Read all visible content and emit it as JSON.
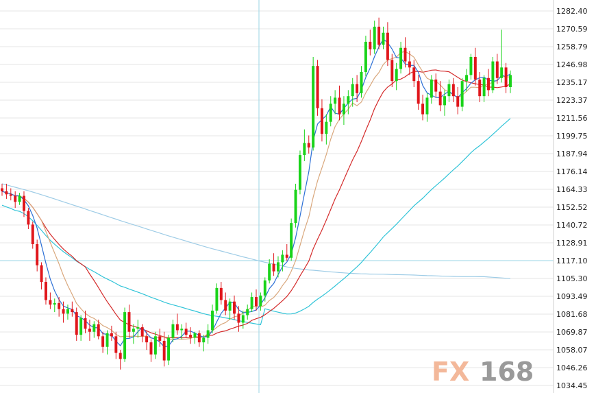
{
  "chart_data": {
    "type": "candlestick",
    "title": "",
    "xlabel": "",
    "ylabel": "",
    "y_ticks": [
      "1282.40",
      "1270.59",
      "1258.79",
      "1246.98",
      "1235.17",
      "1223.37",
      "1211.56",
      "1199.75",
      "1187.94",
      "1176.14",
      "1164.33",
      "1152.52",
      "1140.72",
      "1128.91",
      "1117.10",
      "1105.30",
      "1093.49",
      "1081.68",
      "1069.87",
      "1058.07",
      "1046.26",
      "1034.45"
    ],
    "ylim": [
      1034.45,
      1282.4
    ],
    "current_price": 1117.1,
    "grid": true,
    "colors": {
      "up": "#19d319",
      "down": "#e0161b",
      "ma5": "#2b6fd6",
      "ma10": "#d9a77c",
      "ma20": "#d42b2b",
      "ma60": "#31c4d8",
      "ma200": "#9ecce6",
      "grid": "#e6e6e6",
      "cursor": "#9ad6e6"
    },
    "watermark": {
      "fx": "FX",
      "num": "168",
      "fx_color": "#f3b89a",
      "num_color": "#9a9a9a"
    },
    "candles": [
      [
        1165,
        1168,
        1160,
        1163
      ],
      [
        1163,
        1168,
        1158,
        1161
      ],
      [
        1161,
        1165,
        1157,
        1160
      ],
      [
        1160,
        1163,
        1152,
        1156
      ],
      [
        1156,
        1162,
        1154,
        1160
      ],
      [
        1160,
        1163,
        1146,
        1150
      ],
      [
        1150,
        1152,
        1138,
        1141
      ],
      [
        1141,
        1143,
        1125,
        1128
      ],
      [
        1128,
        1131,
        1110,
        1114
      ],
      [
        1114,
        1116,
        1098,
        1103
      ],
      [
        1103,
        1106,
        1088,
        1091
      ],
      [
        1091,
        1096,
        1085,
        1088
      ],
      [
        1088,
        1092,
        1083,
        1089
      ],
      [
        1089,
        1093,
        1080,
        1085
      ],
      [
        1085,
        1090,
        1076,
        1082
      ],
      [
        1082,
        1088,
        1078,
        1085
      ],
      [
        1085,
        1090,
        1080,
        1083
      ],
      [
        1083,
        1086,
        1064,
        1068
      ],
      [
        1068,
        1081,
        1064,
        1079
      ],
      [
        1079,
        1084,
        1069,
        1072
      ],
      [
        1072,
        1078,
        1064,
        1070
      ],
      [
        1070,
        1077,
        1066,
        1075
      ],
      [
        1075,
        1078,
        1065,
        1067
      ],
      [
        1067,
        1070,
        1056,
        1060
      ],
      [
        1060,
        1071,
        1055,
        1069
      ],
      [
        1069,
        1074,
        1064,
        1067
      ],
      [
        1067,
        1070,
        1052,
        1056
      ],
      [
        1056,
        1058,
        1045,
        1052
      ],
      [
        1052,
        1086,
        1050,
        1083
      ],
      [
        1083,
        1088,
        1066,
        1070
      ],
      [
        1070,
        1075,
        1062,
        1072
      ],
      [
        1072,
        1078,
        1066,
        1073
      ],
      [
        1073,
        1075,
        1063,
        1067
      ],
      [
        1067,
        1071,
        1058,
        1063
      ],
      [
        1063,
        1065,
        1050,
        1055
      ],
      [
        1055,
        1070,
        1052,
        1067
      ],
      [
        1067,
        1072,
        1060,
        1064
      ],
      [
        1064,
        1070,
        1047,
        1051
      ],
      [
        1051,
        1068,
        1048,
        1066
      ],
      [
        1066,
        1078,
        1063,
        1075
      ],
      [
        1075,
        1082,
        1068,
        1071
      ],
      [
        1071,
        1075,
        1065,
        1072
      ],
      [
        1072,
        1076,
        1066,
        1068
      ],
      [
        1068,
        1073,
        1062,
        1066
      ],
      [
        1066,
        1070,
        1062,
        1069
      ],
      [
        1069,
        1071,
        1060,
        1063
      ],
      [
        1063,
        1068,
        1057,
        1066
      ],
      [
        1066,
        1075,
        1062,
        1071
      ],
      [
        1071,
        1088,
        1069,
        1084
      ],
      [
        1084,
        1102,
        1082,
        1099
      ],
      [
        1099,
        1103,
        1088,
        1091
      ],
      [
        1091,
        1096,
        1081,
        1084
      ],
      [
        1084,
        1092,
        1078,
        1090
      ],
      [
        1090,
        1094,
        1078,
        1082
      ],
      [
        1082,
        1087,
        1070,
        1076
      ],
      [
        1076,
        1084,
        1072,
        1081
      ],
      [
        1081,
        1088,
        1078,
        1085
      ],
      [
        1085,
        1096,
        1083,
        1093
      ],
      [
        1093,
        1098,
        1084,
        1087
      ],
      [
        1087,
        1096,
        1084,
        1094
      ],
      [
        1094,
        1106,
        1090,
        1104
      ],
      [
        1104,
        1118,
        1102,
        1115
      ],
      [
        1115,
        1122,
        1107,
        1110
      ],
      [
        1110,
        1120,
        1106,
        1116
      ],
      [
        1116,
        1124,
        1110,
        1121
      ],
      [
        1121,
        1128,
        1117,
        1119
      ],
      [
        1119,
        1145,
        1117,
        1142
      ],
      [
        1142,
        1168,
        1139,
        1164
      ],
      [
        1164,
        1190,
        1161,
        1187
      ],
      [
        1187,
        1204,
        1183,
        1195
      ],
      [
        1195,
        1200,
        1188,
        1192
      ],
      [
        1192,
        1252,
        1190,
        1246
      ],
      [
        1246,
        1250,
        1213,
        1218
      ],
      [
        1218,
        1224,
        1196,
        1201
      ],
      [
        1201,
        1214,
        1194,
        1209
      ],
      [
        1209,
        1226,
        1206,
        1221
      ],
      [
        1221,
        1230,
        1214,
        1225
      ],
      [
        1225,
        1233,
        1210,
        1214
      ],
      [
        1214,
        1226,
        1207,
        1221
      ],
      [
        1221,
        1230,
        1214,
        1226
      ],
      [
        1226,
        1238,
        1219,
        1234
      ],
      [
        1234,
        1240,
        1222,
        1228
      ],
      [
        1228,
        1246,
        1225,
        1242
      ],
      [
        1242,
        1266,
        1239,
        1262
      ],
      [
        1262,
        1270,
        1253,
        1257
      ],
      [
        1257,
        1276,
        1254,
        1272
      ],
      [
        1272,
        1278,
        1257,
        1260
      ],
      [
        1260,
        1272,
        1257,
        1268
      ],
      [
        1268,
        1275,
        1246,
        1250
      ],
      [
        1250,
        1254,
        1232,
        1236
      ],
      [
        1236,
        1248,
        1230,
        1244
      ],
      [
        1244,
        1262,
        1241,
        1258
      ],
      [
        1258,
        1265,
        1245,
        1249
      ],
      [
        1249,
        1256,
        1240,
        1245
      ],
      [
        1245,
        1250,
        1232,
        1236
      ],
      [
        1236,
        1240,
        1217,
        1221
      ],
      [
        1221,
        1227,
        1210,
        1214
      ],
      [
        1214,
        1228,
        1209,
        1225
      ],
      [
        1225,
        1240,
        1221,
        1237
      ],
      [
        1237,
        1241,
        1225,
        1229
      ],
      [
        1229,
        1236,
        1216,
        1220
      ],
      [
        1220,
        1230,
        1213,
        1226
      ],
      [
        1226,
        1237,
        1222,
        1234
      ],
      [
        1234,
        1238,
        1222,
        1226
      ],
      [
        1226,
        1232,
        1214,
        1219
      ],
      [
        1219,
        1238,
        1216,
        1236
      ],
      [
        1236,
        1244,
        1229,
        1240
      ],
      [
        1240,
        1254,
        1237,
        1252
      ],
      [
        1252,
        1258,
        1233,
        1237
      ],
      [
        1237,
        1242,
        1222,
        1226
      ],
      [
        1226,
        1240,
        1222,
        1238
      ],
      [
        1238,
        1244,
        1226,
        1230
      ],
      [
        1230,
        1252,
        1228,
        1249
      ],
      [
        1249,
        1254,
        1234,
        1238
      ],
      [
        1238,
        1270,
        1235,
        1245
      ],
      [
        1245,
        1248,
        1228,
        1232
      ],
      [
        1232,
        1243,
        1228,
        1240
      ]
    ]
  }
}
